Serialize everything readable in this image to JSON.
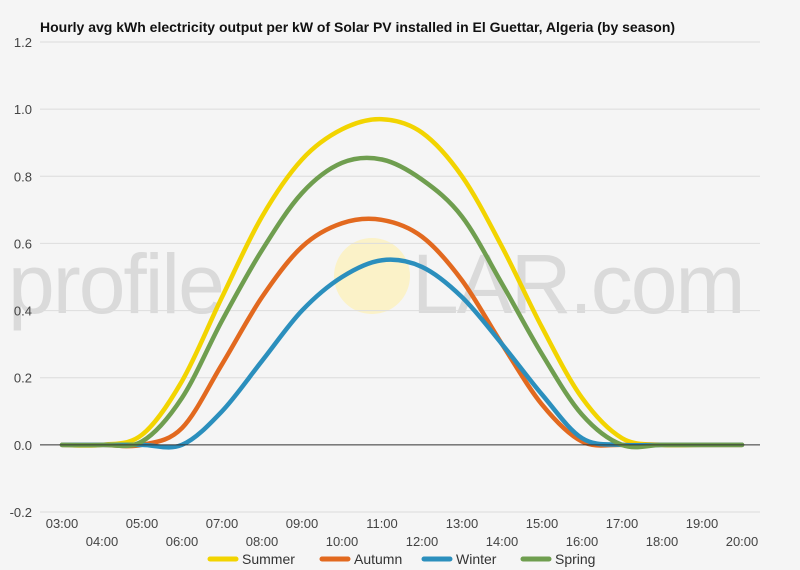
{
  "watermark": {
    "left": "profile",
    "right": "LAR.com"
  },
  "chart_data": {
    "type": "line",
    "title": "Hourly avg kWh electricity output per kW of Solar PV installed in El Guettar, Algeria (by season)",
    "xlabel": "",
    "ylabel": "",
    "x": [
      "03:00",
      "04:00",
      "05:00",
      "06:00",
      "07:00",
      "08:00",
      "09:00",
      "10:00",
      "11:00",
      "12:00",
      "13:00",
      "14:00",
      "15:00",
      "16:00",
      "17:00",
      "18:00",
      "19:00",
      "20:00"
    ],
    "ylim": [
      -0.2,
      1.2
    ],
    "yticks": [
      -0.2,
      0.0,
      0.2,
      0.4,
      0.6,
      0.8,
      1.0,
      1.2
    ],
    "ytick_labels": [
      "-0.2",
      "0.0",
      "0.2",
      "0.4",
      "0.6",
      "0.8",
      "1.0",
      "1.2"
    ],
    "grid": true,
    "legend_position": "bottom",
    "series": [
      {
        "name": "Summer",
        "color": "#f2d400",
        "values": [
          0.0,
          0.0,
          0.03,
          0.19,
          0.44,
          0.68,
          0.85,
          0.94,
          0.97,
          0.93,
          0.8,
          0.59,
          0.35,
          0.14,
          0.02,
          0.0,
          0.0,
          0.0
        ]
      },
      {
        "name": "Autumn",
        "color": "#e2691f",
        "values": [
          0.0,
          0.0,
          0.0,
          0.05,
          0.24,
          0.44,
          0.59,
          0.66,
          0.67,
          0.62,
          0.49,
          0.3,
          0.12,
          0.01,
          0.0,
          0.0,
          0.0,
          0.0
        ]
      },
      {
        "name": "Winter",
        "color": "#2b8fbd",
        "values": [
          0.0,
          0.0,
          0.0,
          0.0,
          0.1,
          0.25,
          0.4,
          0.5,
          0.55,
          0.53,
          0.44,
          0.3,
          0.15,
          0.02,
          0.0,
          0.0,
          0.0,
          0.0
        ]
      },
      {
        "name": "Spring",
        "color": "#6f9e4f",
        "values": [
          0.0,
          0.0,
          0.01,
          0.14,
          0.37,
          0.58,
          0.75,
          0.84,
          0.85,
          0.79,
          0.68,
          0.48,
          0.27,
          0.09,
          0.0,
          0.0,
          0.0,
          0.0
        ]
      }
    ]
  }
}
